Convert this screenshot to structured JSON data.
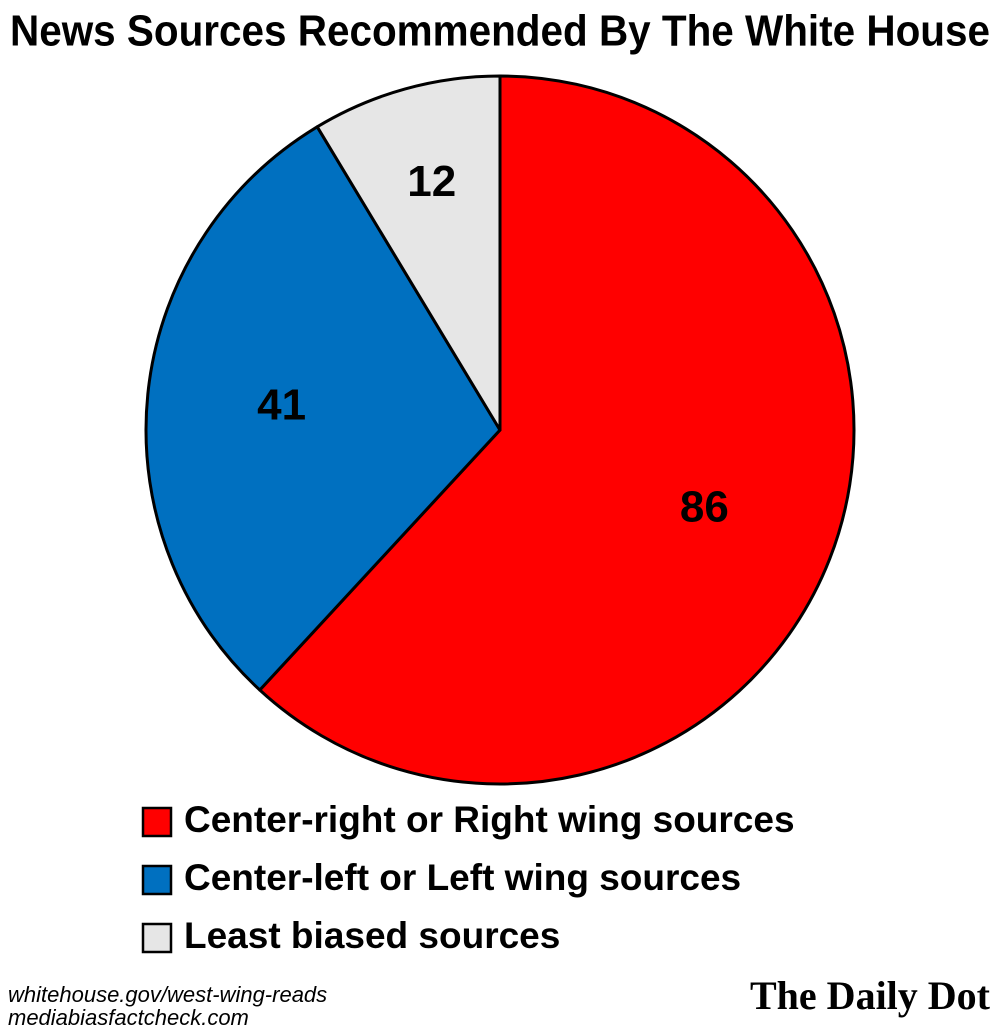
{
  "chart_data": {
    "type": "pie",
    "title": "News Sources Recommended By The White House",
    "categories": [
      "Center-right or Right wing sources",
      "Center-left or Left wing sources",
      "Least biased sources"
    ],
    "values": [
      86,
      41,
      12
    ],
    "colors": [
      "#ff0000",
      "#0070c0",
      "#e6e6e6"
    ],
    "source": [
      "whitehouse.gov/west-wing-reads",
      "mediabiasfactcheck.com"
    ]
  },
  "logo": "The Daily Dot"
}
